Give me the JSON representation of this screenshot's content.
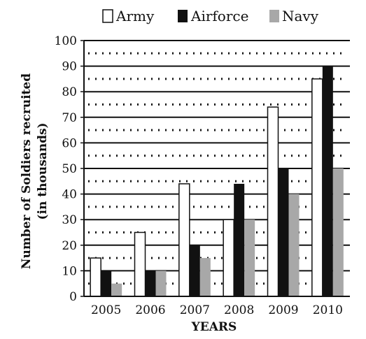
{
  "chart_data": {
    "type": "bar",
    "title": "",
    "xlabel": "YEARS",
    "ylabel": [
      "Number of Soldiers recruited",
      "(in thousands)"
    ],
    "categories": [
      "2005",
      "2006",
      "2007",
      "2008",
      "2009",
      "2010"
    ],
    "series": [
      {
        "name": "Army",
        "values": [
          15,
          25,
          44,
          30,
          74,
          85
        ],
        "color": "#ffffff"
      },
      {
        "name": "Airforce",
        "values": [
          10,
          10,
          20,
          44,
          50,
          90
        ],
        "color": "#111111"
      },
      {
        "name": "Navy",
        "values": [
          5,
          10,
          15,
          30,
          40,
          50
        ],
        "color": "#a8a8a8"
      }
    ],
    "ylim": [
      0,
      100
    ],
    "yticks": [
      0,
      10,
      20,
      30,
      40,
      50,
      60,
      70,
      80,
      90,
      100
    ],
    "grid": "solid at major ticks, dotted at midpoints",
    "legend": "top-center"
  }
}
